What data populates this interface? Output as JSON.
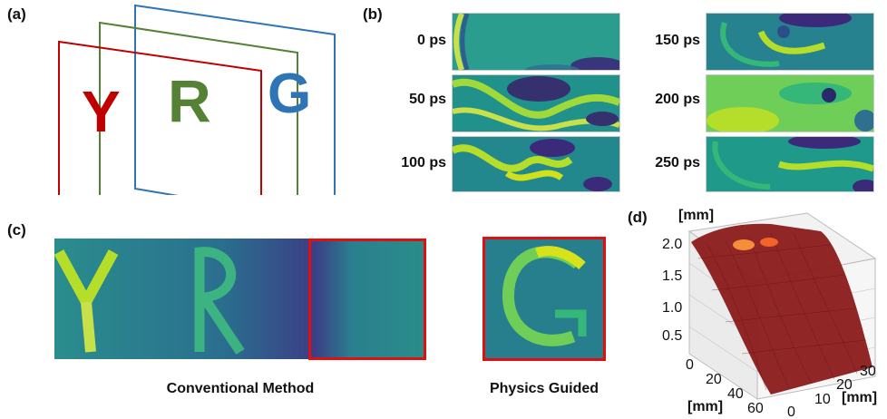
{
  "panels": {
    "a": {
      "label": "(a)",
      "letters": [
        {
          "text": "Y",
          "color": "#c00000"
        },
        {
          "text": "R",
          "color": "#548235"
        },
        {
          "text": "G",
          "color": "#2e75b6"
        }
      ],
      "plane_colors": [
        "#c00000",
        "#548235",
        "#2e75b6"
      ]
    },
    "b": {
      "label": "(b)",
      "frames": [
        "0 ps",
        "50 ps",
        "100 ps",
        "150 ps",
        "200 ps",
        "250 ps"
      ]
    },
    "c": {
      "label": "(c)",
      "conventional_caption": "Conventional Method",
      "physics_caption": "Physics Guided",
      "highlight_color": "#e01010"
    },
    "d": {
      "label": "(d)",
      "z_unit": "[mm]",
      "x_unit": "[mm]",
      "y_unit": "[mm]",
      "z_ticks": [
        "2.0",
        "1.5",
        "1.0",
        "0.5"
      ],
      "x_ticks": [
        "0",
        "20",
        "40",
        "60"
      ],
      "y_ticks": [
        "0",
        "10",
        "20",
        "30"
      ],
      "surface_color": "#8b1a1a"
    }
  }
}
